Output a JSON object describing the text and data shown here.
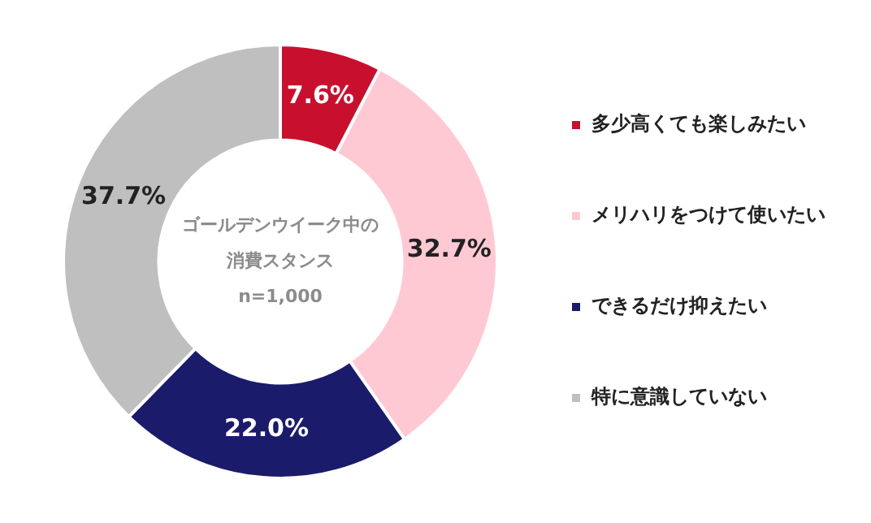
{
  "chart_data": {
    "type": "donut",
    "title": "ゴールデンウイーク中の消費スタンス",
    "annotations": [
      "n=1,000"
    ],
    "categories": [
      "多少高くても楽しみたい",
      "メリハリをつけて使いたい",
      "できるだけ抑えたい",
      "特に意識していない"
    ],
    "values": [
      7.6,
      32.7,
      22.0,
      37.7
    ],
    "colors": [
      "#c8102e",
      "#ffc9d4",
      "#1b1b6b",
      "#bfbfbf"
    ],
    "value_labels": [
      "7.6%",
      "32.7%",
      "22.0%",
      "37.7%"
    ],
    "legend": "right"
  }
}
